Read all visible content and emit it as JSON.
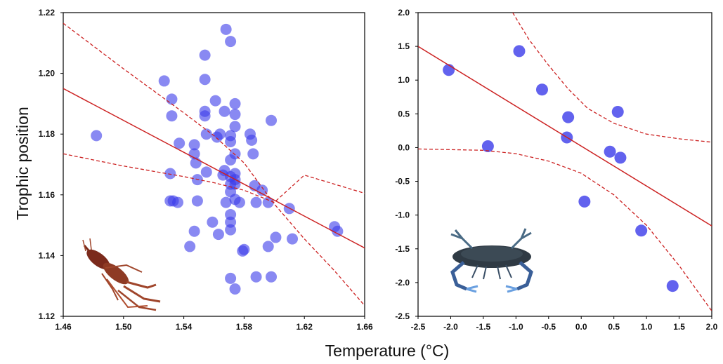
{
  "figure": {
    "ylabel": "Trophic position",
    "xlabel": "Temperature (°C)"
  },
  "colors": {
    "points": "#3b3bea",
    "fit_line": "#cc2222",
    "axis": "#000000"
  },
  "chart_data": [
    {
      "type": "scatter",
      "title": "",
      "xlim": [
        1.46,
        1.66
      ],
      "ylim": [
        1.12,
        1.22
      ],
      "xticks": [
        "1.46",
        "1.50",
        "1.54",
        "1.58",
        "1.62",
        "1.66"
      ],
      "yticks": [
        "1.12",
        "1.14",
        "1.16",
        "1.18",
        "1.20",
        "1.22"
      ],
      "grid": false,
      "legend": "none",
      "illustration": "crayfish-photo",
      "fit_line": [
        [
          1.46,
          1.195
        ],
        [
          1.66,
          1.1425
        ]
      ],
      "ci_upper": [
        [
          1.46,
          1.2165
        ],
        [
          1.5,
          1.2015
        ],
        [
          1.54,
          1.187
        ],
        [
          1.56,
          1.1795
        ],
        [
          1.58,
          1.1705
        ],
        [
          1.6,
          1.157
        ],
        [
          1.62,
          1.1455
        ],
        [
          1.64,
          1.135
        ],
        [
          1.66,
          1.1235
        ]
      ],
      "ci_lower": [
        [
          1.46,
          1.1735
        ],
        [
          1.5,
          1.1695
        ],
        [
          1.54,
          1.166
        ],
        [
          1.56,
          1.164
        ],
        [
          1.58,
          1.1615
        ],
        [
          1.6,
          1.1575
        ],
        [
          1.62,
          1.1665
        ],
        [
          1.64,
          1.1635
        ],
        [
          1.66,
          1.1605
        ]
      ],
      "points": [
        [
          1.482,
          1.1795
        ],
        [
          1.527,
          1.1975
        ],
        [
          1.532,
          1.1915
        ],
        [
          1.532,
          1.186
        ],
        [
          1.531,
          1.167
        ],
        [
          1.531,
          1.158
        ],
        [
          1.533,
          1.158
        ],
        [
          1.536,
          1.1575
        ],
        [
          1.537,
          1.177
        ],
        [
          1.544,
          1.143
        ],
        [
          1.547,
          1.148
        ],
        [
          1.547,
          1.1765
        ],
        [
          1.547,
          1.1735
        ],
        [
          1.548,
          1.1705
        ],
        [
          1.549,
          1.165
        ],
        [
          1.549,
          1.158
        ],
        [
          1.554,
          1.206
        ],
        [
          1.554,
          1.198
        ],
        [
          1.554,
          1.1875
        ],
        [
          1.554,
          1.186
        ],
        [
          1.555,
          1.18
        ],
        [
          1.555,
          1.1675
        ],
        [
          1.559,
          1.151
        ],
        [
          1.561,
          1.191
        ],
        [
          1.562,
          1.179
        ],
        [
          1.564,
          1.18
        ],
        [
          1.563,
          1.147
        ],
        [
          1.566,
          1.1665
        ],
        [
          1.567,
          1.1875
        ],
        [
          1.567,
          1.168
        ],
        [
          1.568,
          1.2145
        ],
        [
          1.568,
          1.1575
        ],
        [
          1.571,
          1.2105
        ],
        [
          1.571,
          1.1795
        ],
        [
          1.571,
          1.1775
        ],
        [
          1.571,
          1.1715
        ],
        [
          1.571,
          1.166
        ],
        [
          1.571,
          1.1635
        ],
        [
          1.571,
          1.161
        ],
        [
          1.571,
          1.1535
        ],
        [
          1.571,
          1.151
        ],
        [
          1.571,
          1.1485
        ],
        [
          1.571,
          1.1325
        ],
        [
          1.574,
          1.19
        ],
        [
          1.574,
          1.1865
        ],
        [
          1.574,
          1.1825
        ],
        [
          1.574,
          1.1735
        ],
        [
          1.574,
          1.167
        ],
        [
          1.574,
          1.165
        ],
        [
          1.574,
          1.1635
        ],
        [
          1.574,
          1.1585
        ],
        [
          1.574,
          1.129
        ],
        [
          1.577,
          1.1575
        ],
        [
          1.579,
          1.1415
        ],
        [
          1.58,
          1.142
        ],
        [
          1.584,
          1.18
        ],
        [
          1.585,
          1.178
        ],
        [
          1.586,
          1.1735
        ],
        [
          1.587,
          1.163
        ],
        [
          1.588,
          1.1575
        ],
        [
          1.588,
          1.133
        ],
        [
          1.592,
          1.1615
        ],
        [
          1.596,
          1.1575
        ],
        [
          1.596,
          1.143
        ],
        [
          1.598,
          1.1845
        ],
        [
          1.598,
          1.133
        ],
        [
          1.601,
          1.146
        ],
        [
          1.61,
          1.1555
        ],
        [
          1.612,
          1.1455
        ],
        [
          1.64,
          1.1495
        ],
        [
          1.642,
          1.148
        ]
      ]
    },
    {
      "type": "scatter",
      "title": "",
      "xlim": [
        -2.5,
        2.0
      ],
      "ylim": [
        -2.5,
        2.0
      ],
      "xticks": [
        "-2.5",
        "-2.0",
        "-1.5",
        "-1.0",
        "-0.5",
        "0.0",
        "0.5",
        "1.0",
        "1.5",
        "2.0"
      ],
      "yticks": [
        "-2.5",
        "-2.0",
        "-1.5",
        "-1.0",
        "-0.5",
        "0.0",
        "0.5",
        "1.0",
        "1.5",
        "2.0"
      ],
      "grid": false,
      "legend": "none",
      "illustration": "blue-crab-photo",
      "fit_line": [
        [
          -2.5,
          1.5
        ],
        [
          2.0,
          -1.16
        ]
      ],
      "ci_upper": [
        [
          -1.05,
          2.0
        ],
        [
          -0.8,
          1.6
        ],
        [
          -0.5,
          1.22
        ],
        [
          -0.2,
          0.87
        ],
        [
          0.1,
          0.58
        ],
        [
          0.5,
          0.36
        ],
        [
          1.0,
          0.2
        ],
        [
          1.5,
          0.13
        ],
        [
          2.0,
          0.08
        ]
      ],
      "ci_lower": [
        [
          -2.5,
          -0.02
        ],
        [
          -1.5,
          -0.04
        ],
        [
          -1.0,
          -0.09
        ],
        [
          -0.5,
          -0.2
        ],
        [
          0.0,
          -0.38
        ],
        [
          0.5,
          -0.7
        ],
        [
          1.0,
          -1.15
        ],
        [
          1.5,
          -1.75
        ],
        [
          2.0,
          -2.42
        ]
      ],
      "points": [
        [
          -2.03,
          1.15
        ],
        [
          -1.43,
          0.02
        ],
        [
          -0.95,
          1.43
        ],
        [
          -0.6,
          0.86
        ],
        [
          -0.2,
          0.45
        ],
        [
          -0.22,
          0.15
        ],
        [
          0.05,
          -0.8
        ],
        [
          0.44,
          -0.06
        ],
        [
          0.56,
          0.53
        ],
        [
          0.6,
          -0.15
        ],
        [
          0.92,
          -1.23
        ],
        [
          1.4,
          -2.05
        ]
      ]
    }
  ]
}
